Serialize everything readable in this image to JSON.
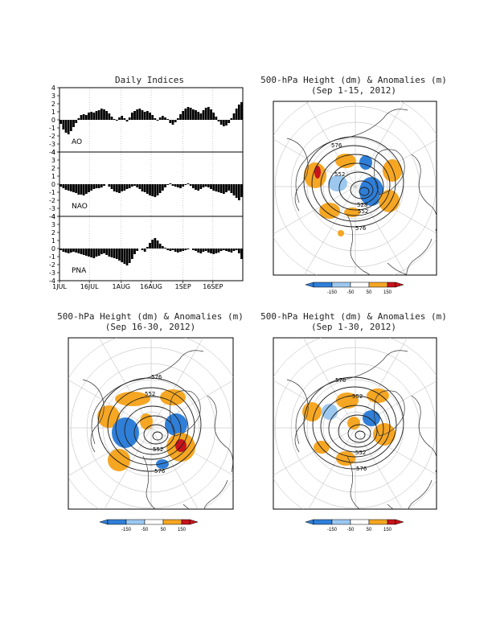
{
  "colors": {
    "neg_strong": "#2f7fd9",
    "neg_weak": "#9cc8f0",
    "pos_weak": "#f5a623",
    "pos_strong": "#c8141b",
    "contour": "#1e1e1e",
    "bar": "#000000"
  },
  "daily_indices": {
    "title": "Daily Indices",
    "y_ticks": [
      "4",
      "3",
      "2",
      "1",
      "0",
      "-1",
      "-2",
      "-3",
      "-4"
    ],
    "x_ticks": [
      "1JUL",
      "16JUL",
      "1AUG",
      "16AUG",
      "1SEP",
      "16SEP"
    ],
    "ylim": [
      -4,
      4
    ]
  },
  "chart_data": [
    {
      "type": "bar",
      "name": "AO",
      "ylim": [
        -4,
        4
      ],
      "x_ticks": [
        "1JUL",
        "16JUL",
        "1AUG",
        "16AUG",
        "1SEP",
        "16SEP"
      ],
      "values": [
        -0.5,
        -1.2,
        -1.6,
        -1.8,
        -1.4,
        -0.9,
        -0.4,
        0.2,
        0.6,
        0.7,
        0.6,
        0.9,
        1.0,
        0.9,
        1.1,
        1.2,
        1.4,
        1.3,
        1.1,
        0.8,
        0.4,
        0.1,
        -0.1,
        0.3,
        0.5,
        0.2,
        -0.2,
        0.3,
        0.9,
        1.1,
        1.3,
        1.4,
        1.2,
        1.0,
        1.1,
        0.9,
        0.6,
        0.2,
        -0.1,
        0.3,
        0.5,
        0.3,
        0.1,
        -0.4,
        -0.6,
        -0.3,
        0.2,
        0.7,
        1.1,
        1.4,
        1.6,
        1.5,
        1.3,
        1.2,
        1.0,
        0.8,
        1.2,
        1.5,
        1.6,
        1.3,
        0.9,
        0.4,
        -0.2,
        -0.6,
        -0.8,
        -0.7,
        -0.4,
        0.2,
        0.8,
        1.4,
        1.9,
        2.2
      ]
    },
    {
      "type": "bar",
      "name": "NAO",
      "ylim": [
        -4,
        4
      ],
      "x_ticks": [
        "1JUL",
        "16JUL",
        "1AUG",
        "16AUG",
        "1SEP",
        "16SEP"
      ],
      "values": [
        -0.3,
        -0.5,
        -0.7,
        -0.8,
        -0.9,
        -1.0,
        -1.1,
        -1.3,
        -1.3,
        -1.4,
        -1.2,
        -1.0,
        -0.8,
        -0.6,
        -0.5,
        -0.5,
        -0.4,
        -0.2,
        0.0,
        -0.3,
        -0.6,
        -0.9,
        -1.0,
        -1.1,
        -0.9,
        -0.8,
        -0.6,
        -0.5,
        -0.3,
        -0.2,
        -0.4,
        -0.6,
        -0.9,
        -1.0,
        -1.2,
        -1.4,
        -1.5,
        -1.6,
        -1.4,
        -1.1,
        -0.8,
        -0.4,
        -0.1,
        0.1,
        -0.2,
        -0.3,
        -0.4,
        -0.5,
        -0.3,
        -0.1,
        0.1,
        -0.2,
        -0.5,
        -0.7,
        -0.8,
        -0.6,
        -0.4,
        -0.3,
        -0.4,
        -0.6,
        -0.8,
        -0.9,
        -1.0,
        -1.1,
        -1.2,
        -1.0,
        -0.8,
        -1.1,
        -1.4,
        -1.7,
        -2.0,
        -1.6
      ]
    },
    {
      "type": "bar",
      "name": "PNA",
      "ylim": [
        -4,
        4
      ],
      "x_ticks": [
        "1JUL",
        "16JUL",
        "1AUG",
        "16AUG",
        "1SEP",
        "16SEP"
      ],
      "values": [
        -0.2,
        -0.4,
        -0.5,
        -0.6,
        -0.5,
        -0.4,
        -0.5,
        -0.6,
        -0.7,
        -0.8,
        -0.9,
        -1.0,
        -1.1,
        -1.2,
        -1.0,
        -0.9,
        -0.7,
        -0.6,
        -0.8,
        -1.0,
        -1.1,
        -1.2,
        -1.3,
        -1.5,
        -1.7,
        -1.9,
        -2.1,
        -1.8,
        -1.3,
        -0.7,
        -0.3,
        0.0,
        -0.2,
        -0.4,
        0.2,
        0.7,
        1.1,
        1.3,
        1.0,
        0.6,
        0.3,
        0.1,
        -0.2,
        -0.3,
        -0.2,
        -0.4,
        -0.5,
        -0.4,
        -0.3,
        -0.2,
        -0.1,
        0.0,
        -0.2,
        -0.3,
        -0.5,
        -0.6,
        -0.4,
        -0.3,
        -0.5,
        -0.6,
        -0.7,
        -0.6,
        -0.5,
        -0.3,
        -0.2,
        -0.3,
        -0.4,
        -0.5,
        -0.3,
        -0.2,
        -0.6,
        -1.3
      ]
    }
  ],
  "maps": [
    {
      "title_line1": "500-hPa Height (dm) & Anomalies (m)",
      "title_line2": "(Sep 1-15, 2012)",
      "contour_labels": [
        "576",
        "552",
        "552",
        "528",
        "576"
      ]
    },
    {
      "title_line1": "500-hPa Height (dm) & Anomalies (m)",
      "title_line2": "(Sep 16-30, 2012)",
      "contour_labels": [
        "576",
        "552",
        "552",
        "576"
      ]
    },
    {
      "title_line1": "500-hPa Height (dm) & Anomalies (m)",
      "title_line2": "(Sep 1-30, 2012)",
      "contour_labels": [
        "576",
        "552",
        "552",
        "576"
      ]
    }
  ],
  "colorbar": {
    "labels": [
      "-150",
      "-50",
      "50",
      "150"
    ]
  }
}
